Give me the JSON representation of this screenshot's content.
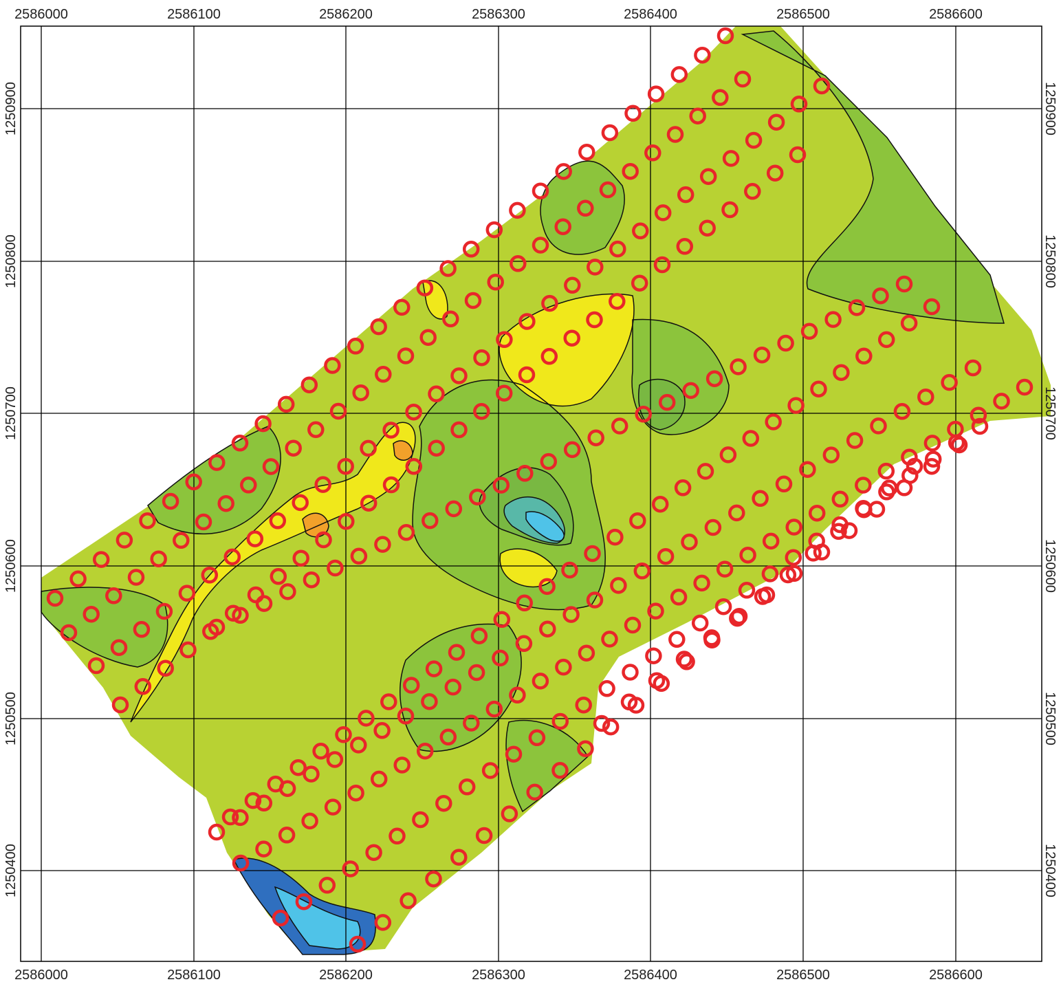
{
  "map": {
    "x_ticks": [
      "2586000",
      "2586100",
      "2586200",
      "2586300",
      "2586400",
      "2586500",
      "2586600"
    ],
    "y_ticks": [
      "1250900",
      "1250800",
      "1250700",
      "1250600",
      "1250500",
      "1250400"
    ],
    "colors": {
      "frame": "#000000",
      "background": "#ffffff",
      "survey_point": "#e8262a",
      "contour_line": "#111111",
      "fill_base": "#b8d233",
      "fill_green": "#8cc43c",
      "fill_dark_green": "#79b842",
      "fill_yellow": "#f0e81b",
      "fill_orange": "#f2a12a",
      "fill_teal": "#58b8a8",
      "fill_cyan": "#4fc3e8",
      "fill_blue": "#2f6fbf"
    }
  }
}
